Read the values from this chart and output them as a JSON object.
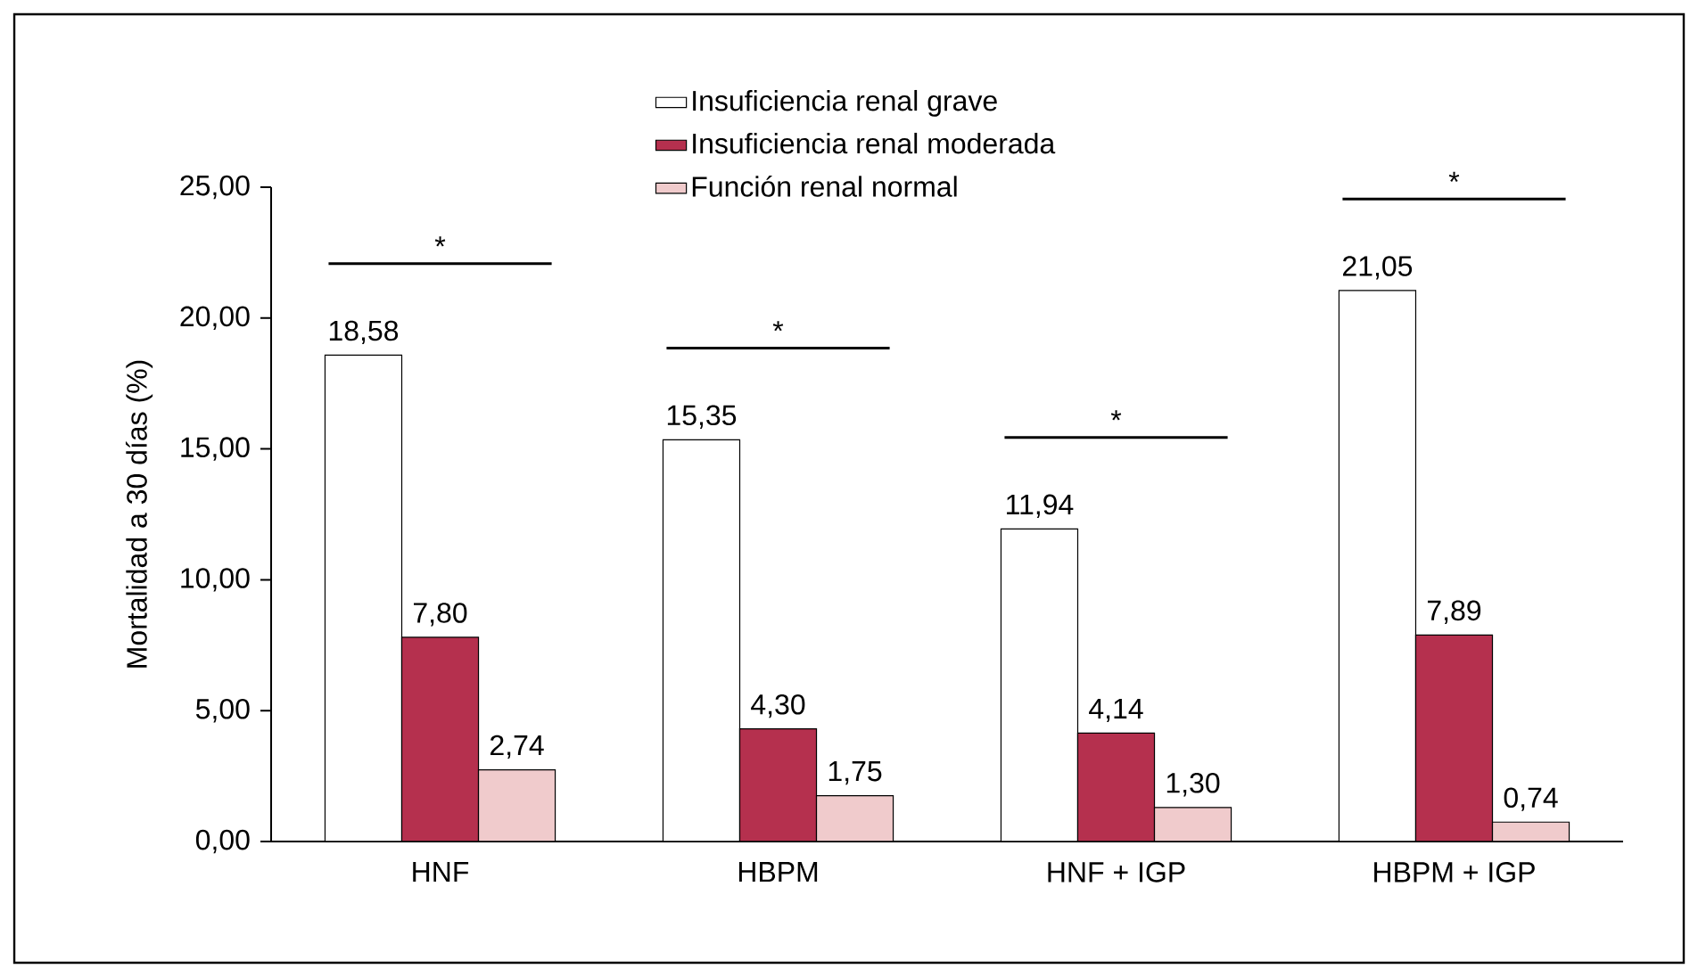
{
  "chart_data": {
    "type": "bar",
    "ylabel": "Mortalidad a 30 días (%)",
    "categories": [
      "HNF",
      "HBPM",
      "HNF + IGP",
      "HBPM + IGP"
    ],
    "series": [
      {
        "name": "Insuficiencia renal grave",
        "color": "#ffffff",
        "values": [
          18.58,
          15.35,
          11.94,
          21.05
        ],
        "value_labels": [
          "18,58",
          "15,35",
          "11,94",
          "21,05"
        ]
      },
      {
        "name": "Insuficiencia renal moderada",
        "color": "#b5304e",
        "values": [
          7.8,
          4.3,
          4.14,
          7.89
        ],
        "value_labels": [
          "7,80",
          "4,30",
          "4,14",
          "7,89"
        ]
      },
      {
        "name": "Función renal normal",
        "color": "#f0cbcc",
        "values": [
          2.74,
          1.75,
          1.3,
          0.74
        ],
        "value_labels": [
          "2,74",
          "1,75",
          "1,30",
          "0,74"
        ]
      }
    ],
    "ylim": [
      0,
      25
    ],
    "yticks": [
      {
        "value": 0,
        "label": "0,00"
      },
      {
        "value": 5,
        "label": "5,00"
      },
      {
        "value": 10,
        "label": "10,00"
      },
      {
        "value": 15,
        "label": "15,00"
      },
      {
        "value": 20,
        "label": "20,00"
      },
      {
        "value": 25,
        "label": "25,00"
      }
    ],
    "annotations": [
      "*",
      "*",
      "*",
      "*"
    ],
    "legend": "top",
    "grid": false
  }
}
